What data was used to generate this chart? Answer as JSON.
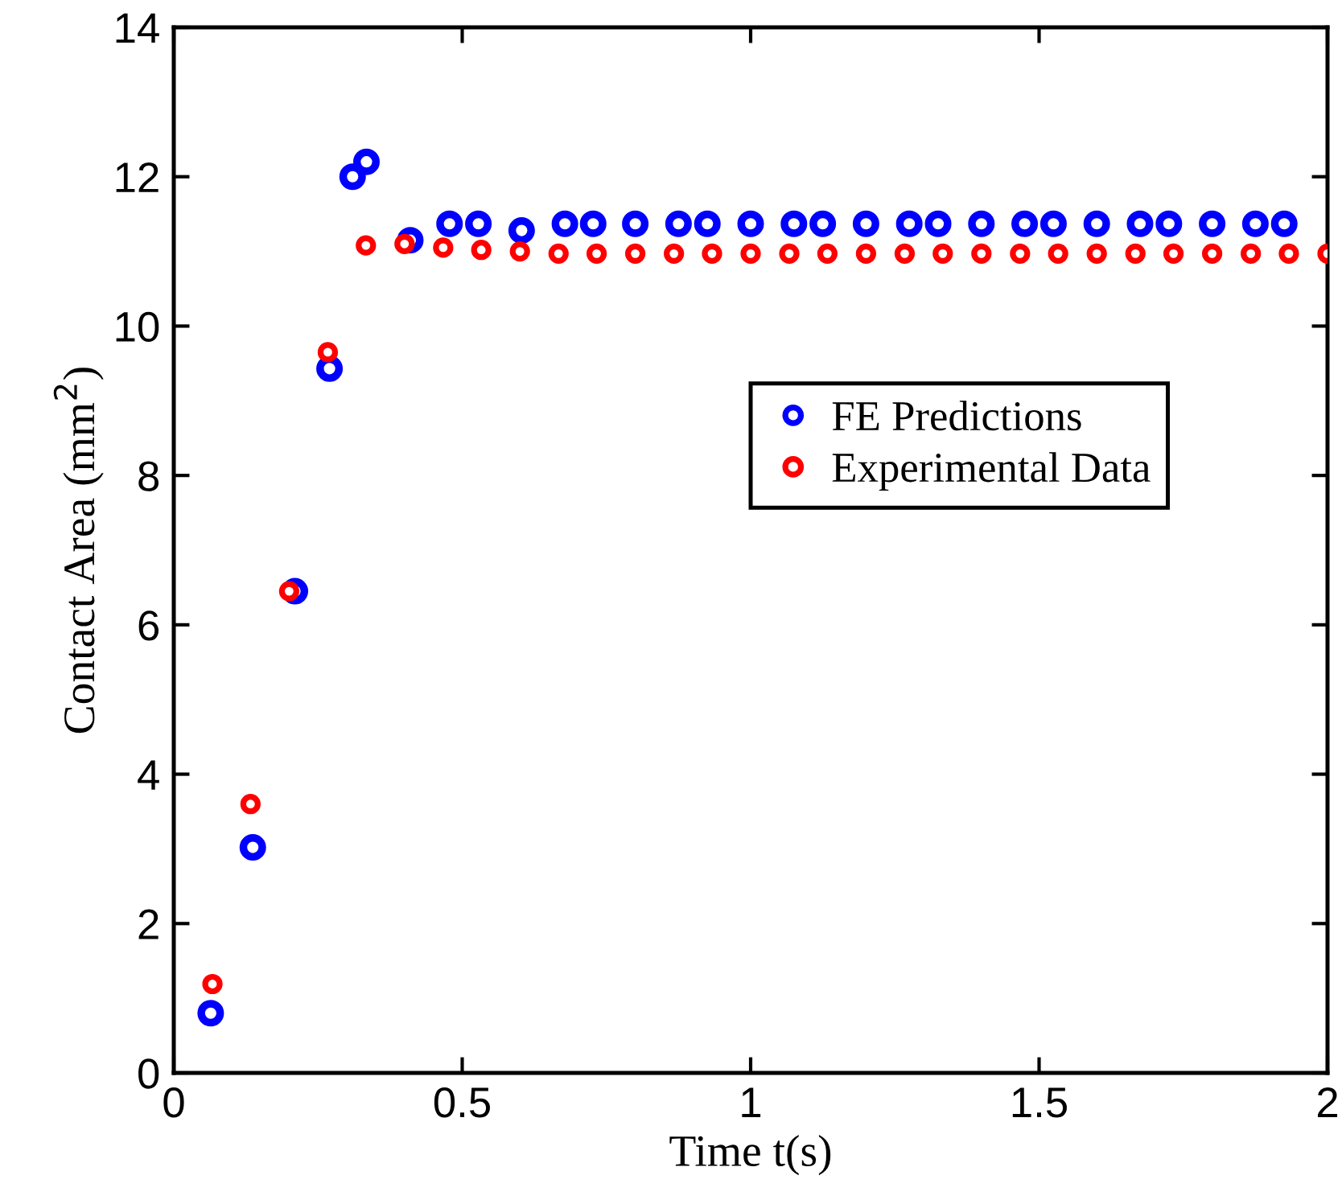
{
  "chart_data": {
    "type": "scatter",
    "xlabel": "Time t(s)",
    "ylabel": "Contact Area (mm$^{2}$)",
    "xlim": [
      0,
      2
    ],
    "ylim": [
      0,
      14
    ],
    "xticks": [
      0,
      0.5,
      1,
      1.5,
      2
    ],
    "yticks": [
      0,
      2,
      4,
      6,
      8,
      10,
      12,
      14
    ],
    "grid": false,
    "legend": "center right",
    "marker": "circle",
    "series": [
      {
        "name": "FE Predictions",
        "color": "#0000ff",
        "x": [
          0.064,
          0.137,
          0.21,
          0.27,
          0.31,
          0.334,
          0.41,
          0.478,
          0.528,
          0.603,
          0.678,
          0.727,
          0.8,
          0.875,
          0.925,
          1.0,
          1.075,
          1.125,
          1.2,
          1.275,
          1.325,
          1.4,
          1.475,
          1.525,
          1.6,
          1.675,
          1.725,
          1.8,
          1.875,
          1.925
        ],
        "values": [
          0.8,
          3.02,
          6.45,
          9.43,
          12.0,
          12.2,
          11.15,
          11.37,
          11.37,
          11.28,
          11.37,
          11.37,
          11.37,
          11.37,
          11.37,
          11.37,
          11.37,
          11.37,
          11.37,
          11.37,
          11.37,
          11.37,
          11.37,
          11.37,
          11.37,
          11.37,
          11.37,
          11.37,
          11.37,
          11.37
        ]
      },
      {
        "name": "Experimental Data",
        "color": "#ff0000",
        "x": [
          0.067,
          0.133,
          0.2,
          0.267,
          0.333,
          0.4,
          0.467,
          0.533,
          0.6,
          0.667,
          0.733,
          0.8,
          0.867,
          0.933,
          1.0,
          1.067,
          1.133,
          1.2,
          1.267,
          1.333,
          1.4,
          1.467,
          1.533,
          1.6,
          1.667,
          1.733,
          1.8,
          1.867,
          1.933,
          2.0
        ],
        "values": [
          1.19,
          3.6,
          6.45,
          9.65,
          11.08,
          11.1,
          11.05,
          11.02,
          11.0,
          10.97,
          10.97,
          10.97,
          10.97,
          10.97,
          10.97,
          10.97,
          10.97,
          10.97,
          10.97,
          10.97,
          10.97,
          10.97,
          10.97,
          10.97,
          10.97,
          10.97,
          10.97,
          10.97,
          10.97,
          10.97
        ]
      }
    ]
  }
}
